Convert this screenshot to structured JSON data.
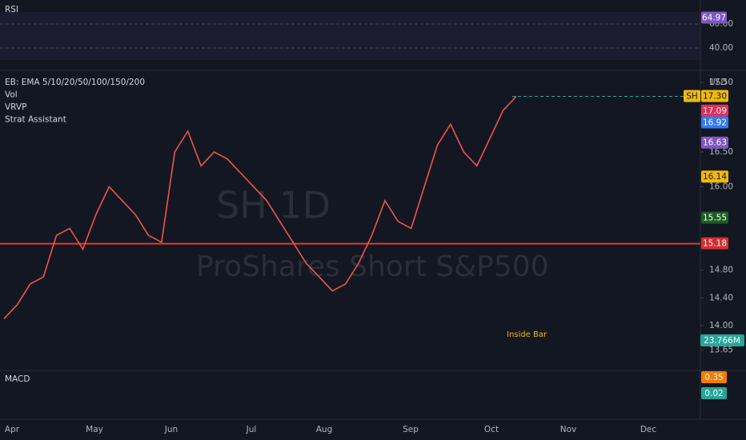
{
  "rsi": {
    "label": "RSI",
    "badge": {
      "value": 64.97,
      "label": "64.97"
    },
    "ticks": [
      {
        "value": 60,
        "label": "60.00"
      },
      {
        "value": 40,
        "label": "40.00"
      }
    ]
  },
  "main": {
    "indicators": [
      "EB: EMA 5/10/20/50/100/150/200",
      "Vol",
      "VRVP",
      "Strat Assistant"
    ],
    "currency": "USD",
    "watermark_symbol": "SH  1D",
    "watermark_name": "ProShares Short S&P500",
    "ticks": [
      {
        "value": 17.5,
        "label": "17.50"
      },
      {
        "value": 16.5,
        "label": "16.50"
      },
      {
        "value": 16,
        "label": "16.00"
      },
      {
        "value": 14.8,
        "label": "14.80"
      },
      {
        "value": 14.4,
        "label": "14.40"
      },
      {
        "value": 14,
        "label": "14.00"
      },
      {
        "value": 13.65,
        "label": "13.65"
      }
    ],
    "symbol_tag": "SH",
    "badges": [
      {
        "value": 17.3,
        "label": "17.30",
        "color": "#f0b90b"
      },
      {
        "value": 17.09,
        "label": "17.09",
        "color": "#e0305a"
      },
      {
        "value": 16.92,
        "label": "16.92",
        "color": "#3179f5"
      },
      {
        "value": 16.63,
        "label": "16.63",
        "color": "#7e57c2"
      },
      {
        "value": 16.14,
        "label": "16.14",
        "color": "#f0b90b"
      },
      {
        "value": 15.55,
        "label": "15.55",
        "color": "#1b5e20"
      },
      {
        "value": 15.18,
        "label": "15.18",
        "color": "#d32f2f"
      }
    ],
    "volume_badge": "23.766M",
    "annotation": "Inside Bar",
    "level_line": 15.18,
    "close": [
      14.1,
      14.3,
      14.6,
      14.7,
      15.3,
      15.4,
      15.1,
      15.6,
      16.0,
      15.8,
      15.6,
      15.3,
      15.2,
      16.5,
      16.8,
      16.3,
      16.5,
      16.4,
      16.2,
      16.0,
      15.8,
      15.5,
      15.2,
      14.9,
      14.7,
      14.5,
      14.6,
      14.9,
      15.3,
      15.8,
      15.5,
      15.4,
      16.0,
      16.6,
      16.9,
      16.5,
      16.3,
      16.7,
      17.1,
      17.3
    ]
  },
  "macd": {
    "label": "MACD",
    "badges": [
      {
        "label": "0.35",
        "color": "#f57c00"
      },
      {
        "label": "0.02",
        "color": "#26a69a"
      }
    ]
  },
  "months": [
    "Apr",
    "May",
    "Jun",
    "Jul",
    "Aug",
    "Sep",
    "Oct",
    "Nov",
    "Dec"
  ]
}
